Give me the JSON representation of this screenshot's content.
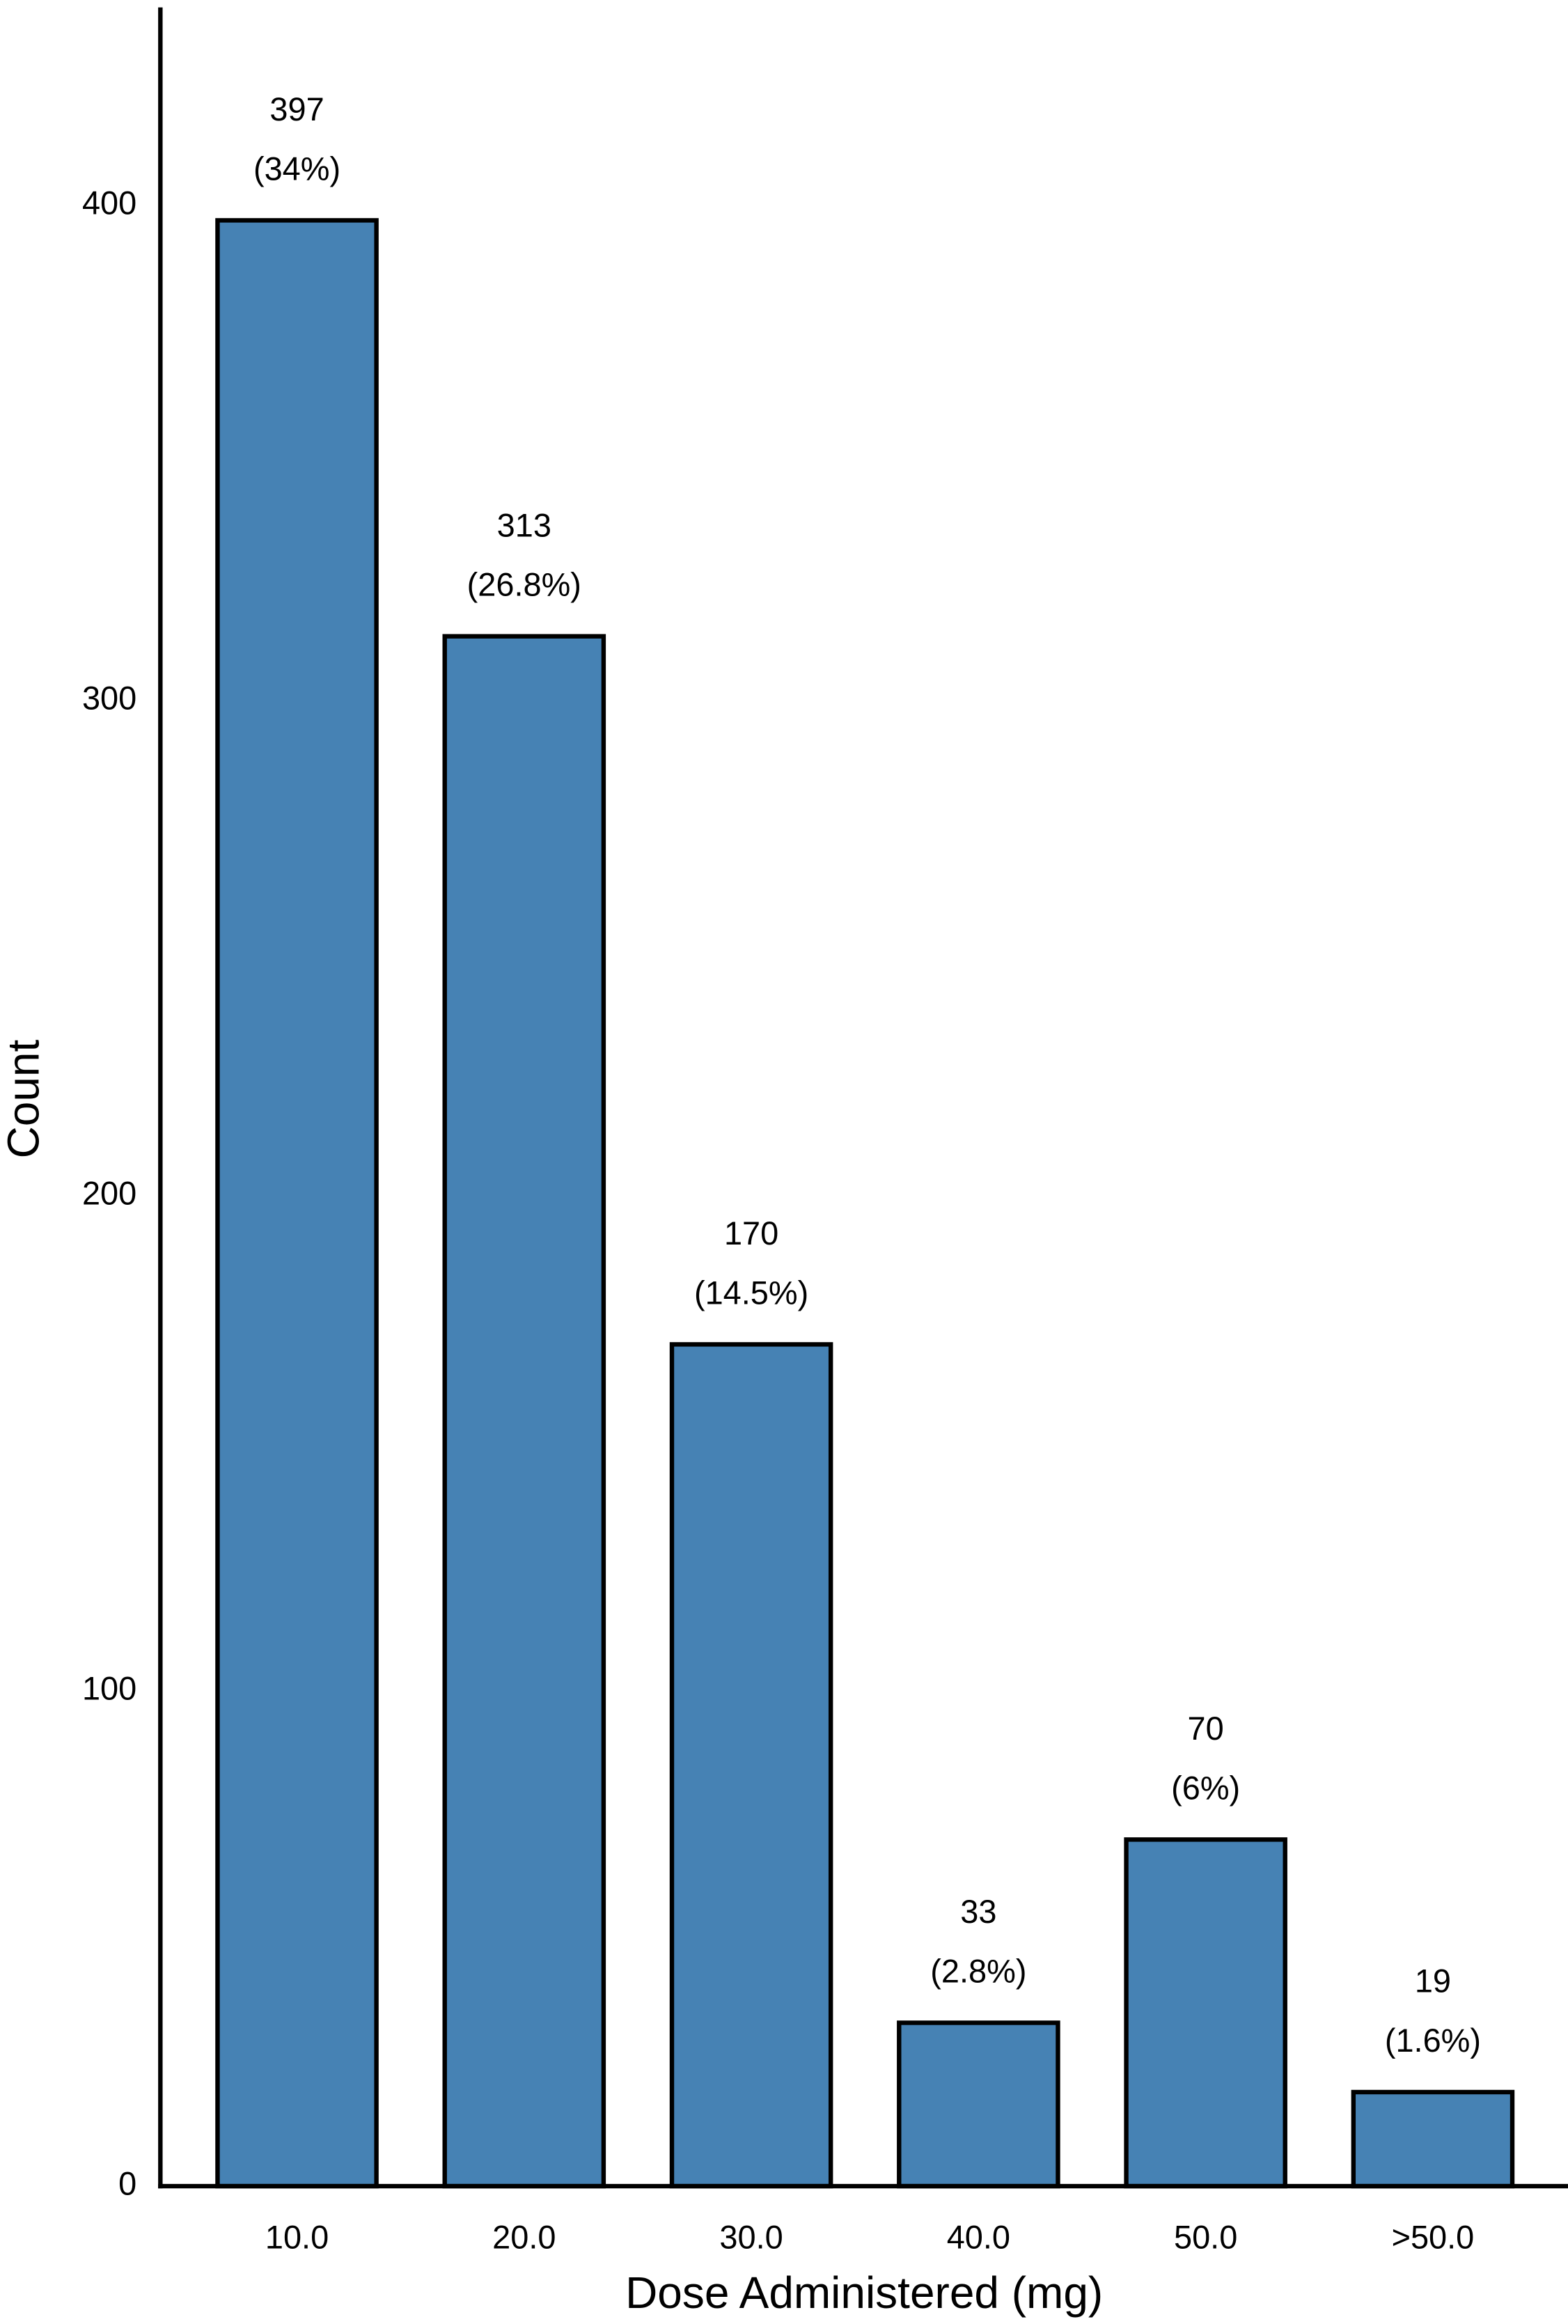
{
  "chart_data": {
    "type": "bar",
    "x_label": "Dose Administered (mg)",
    "y_label": "Count",
    "categories": [
      "10.0",
      "20.0",
      "30.0",
      "40.0",
      "50.0",
      ">50.0"
    ],
    "values": [
      397,
      313,
      170,
      33,
      70,
      19
    ],
    "percent_labels": [
      "(34%)",
      "(26.8%)",
      "(14.5%)",
      "(2.8%)",
      "(6%)",
      "(1.6%)"
    ],
    "color": "#4682b4",
    "ylim": [
      0,
      440
    ],
    "yticks": [
      0,
      100,
      200,
      300,
      400
    ]
  }
}
